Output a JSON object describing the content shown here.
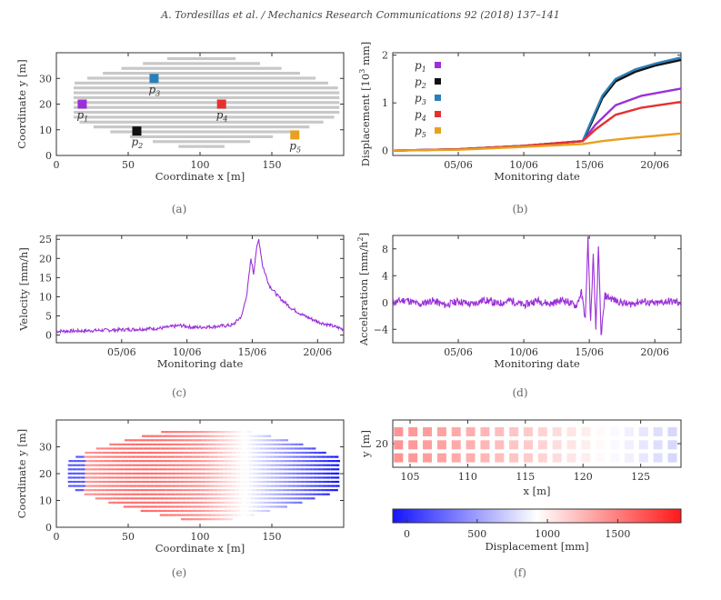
{
  "header": "A. Tordesillas et al. / Mechanics Research Communications 92 (2018) 137–141",
  "colors": {
    "p1": "#9b30d9",
    "p2": "#111111",
    "p3": "#2a7fba",
    "p4": "#e63030",
    "p5": "#e8a020",
    "purple": "#9b30d9",
    "grid": "#c8c8c8"
  },
  "chart_data": [
    {
      "id": "a",
      "type": "scatter",
      "caption": "(a)",
      "xlabel": "Coordinate x [m]",
      "ylabel": "Coordinate y [m]",
      "xlim": [
        0,
        200
      ],
      "ylim": [
        0,
        40
      ],
      "xticks": [
        "0",
        "50",
        "100",
        "150"
      ],
      "xtick_values": [
        0,
        50,
        100,
        150
      ],
      "yticks": [
        "0",
        "10",
        "20",
        "30"
      ],
      "ytick_values": [
        0,
        10,
        20,
        30
      ],
      "points": [
        {
          "name": "p1",
          "label": "p",
          "sub": "1",
          "x": 18,
          "y": 20,
          "color": "#9b30d9"
        },
        {
          "name": "p2",
          "label": "p",
          "sub": "2",
          "x": 56,
          "y": 9.5,
          "color": "#111111"
        },
        {
          "name": "p3",
          "label": "p",
          "sub": "3",
          "x": 68,
          "y": 30,
          "color": "#2a7fba"
        },
        {
          "name": "p4",
          "label": "p",
          "sub": "4",
          "x": 115,
          "y": 20,
          "color": "#e63030"
        },
        {
          "name": "p5",
          "label": "p",
          "sub": "5",
          "x": 166,
          "y": 8,
          "color": "#e8a020"
        }
      ]
    },
    {
      "id": "b",
      "type": "line",
      "caption": "(b)",
      "xlabel": "Monitoring date",
      "ylabel": "Displacement [10³ mm]",
      "ylabel_main": "Displacement [10",
      "ylabel_sup": "3",
      "ylabel_end": " mm]",
      "xlim": [
        0,
        22
      ],
      "ylim": [
        -0.1,
        2.05
      ],
      "xticks": [
        "05/06",
        "10/06",
        "15/06",
        "20/06"
      ],
      "xtick_values": [
        5,
        10,
        15,
        20
      ],
      "yticks": [
        "0",
        "1",
        "2"
      ],
      "ytick_values": [
        0,
        1,
        2
      ],
      "series": [
        {
          "name": "p1",
          "label": "p",
          "sub": "1",
          "color": "#9b30d9",
          "x": [
            0,
            5,
            10,
            14.5,
            15.5,
            17,
            19,
            22
          ],
          "y": [
            0,
            0.03,
            0.1,
            0.2,
            0.55,
            0.95,
            1.15,
            1.3
          ]
        },
        {
          "name": "p2",
          "label": "p",
          "sub": "2",
          "color": "#111111",
          "x": [
            0,
            5,
            10,
            14.5,
            15.2,
            16,
            17,
            18.5,
            20,
            22
          ],
          "y": [
            0,
            0.03,
            0.1,
            0.2,
            0.6,
            1.1,
            1.45,
            1.65,
            1.78,
            1.9
          ]
        },
        {
          "name": "p3",
          "label": "p",
          "sub": "3",
          "color": "#2a7fba",
          "x": [
            0,
            5,
            10,
            14.5,
            15.2,
            16,
            17,
            18.5,
            20,
            22
          ],
          "y": [
            0,
            0.03,
            0.1,
            0.2,
            0.65,
            1.15,
            1.5,
            1.7,
            1.82,
            1.95
          ]
        },
        {
          "name": "p4",
          "label": "p",
          "sub": "4",
          "color": "#e63030",
          "x": [
            0,
            5,
            10,
            14.5,
            15.5,
            17,
            19,
            22
          ],
          "y": [
            0,
            0.03,
            0.1,
            0.2,
            0.45,
            0.75,
            0.9,
            1.02
          ]
        },
        {
          "name": "p5",
          "label": "p",
          "sub": "5",
          "color": "#e8a020",
          "x": [
            0,
            5,
            10,
            14.5,
            16,
            18,
            20,
            22
          ],
          "y": [
            0,
            0.02,
            0.08,
            0.14,
            0.2,
            0.26,
            0.31,
            0.36
          ]
        }
      ]
    },
    {
      "id": "c",
      "type": "line",
      "caption": "(c)",
      "xlabel": "Monitoring date",
      "ylabel": "Velocity [mm/h]",
      "xlim": [
        0,
        22
      ],
      "ylim": [
        -2,
        26
      ],
      "xticks": [
        "05/06",
        "10/06",
        "15/06",
        "20/06"
      ],
      "xtick_values": [
        5,
        10,
        15,
        20
      ],
      "yticks": [
        "0",
        "5",
        "10",
        "15",
        "20",
        "25"
      ],
      "ytick_values": [
        0,
        5,
        10,
        15,
        20,
        25
      ],
      "series": [
        {
          "name": "velocity",
          "color": "#9b30d9",
          "x": [
            0,
            2,
            4,
            6,
            8,
            9.5,
            10.5,
            12,
            13.5,
            14.2,
            14.6,
            14.9,
            15.1,
            15.3,
            15.5,
            15.8,
            16.3,
            17,
            18,
            19,
            20,
            21,
            22
          ],
          "y": [
            1,
            1.1,
            1.3,
            1.5,
            1.8,
            2.5,
            2.0,
            2.2,
            2.6,
            5,
            11,
            20,
            16,
            22,
            25,
            18,
            13,
            10,
            7,
            5,
            3.5,
            2.5,
            1.5
          ]
        }
      ]
    },
    {
      "id": "d",
      "type": "line",
      "caption": "(d)",
      "xlabel": "Monitoring date",
      "ylabel": "Acceleration [mm/h²]",
      "ylabel_main": "Acceleration [mm/h",
      "ylabel_sup": "2",
      "ylabel_end": "]",
      "xlim": [
        0,
        22
      ],
      "ylim": [
        -6,
        10
      ],
      "xticks": [
        "05/06",
        "10/06",
        "15/06",
        "20/06"
      ],
      "xtick_values": [
        5,
        10,
        15,
        20
      ],
      "yticks": [
        "−4",
        "0",
        "4",
        "8"
      ],
      "ytick_values": [
        -4,
        0,
        4,
        8
      ],
      "series": [
        {
          "name": "acceleration",
          "color": "#9b30d9",
          "x": [
            0,
            1,
            2,
            3,
            4,
            5,
            6,
            7,
            8,
            9,
            10,
            11,
            12,
            13,
            14,
            14.4,
            14.7,
            14.9,
            15.1,
            15.3,
            15.5,
            15.7,
            15.9,
            16.2,
            17,
            18,
            19,
            20,
            21,
            22
          ],
          "y": [
            0,
            0.4,
            -0.3,
            0.3,
            -0.4,
            0.2,
            -0.3,
            0.4,
            -0.2,
            0.3,
            -0.4,
            0.3,
            -0.2,
            0.4,
            -0.5,
            1.5,
            -2.5,
            9.5,
            -3,
            7,
            -4,
            8,
            -5,
            1,
            0.3,
            -0.3,
            0.2,
            -0.2,
            0.2,
            0
          ]
        }
      ]
    },
    {
      "id": "e",
      "type": "heatmap",
      "caption": "(e)",
      "xlabel": "Coordinate x [m]",
      "ylabel": "Coordinate y [m]",
      "xlim": [
        0,
        200
      ],
      "ylim": [
        0,
        40
      ],
      "xticks": [
        "0",
        "50",
        "100",
        "150"
      ],
      "xtick_values": [
        0,
        50,
        100,
        150
      ],
      "yticks": [
        "0",
        "10",
        "20",
        "30"
      ],
      "ytick_values": [
        0,
        10,
        20,
        30
      ]
    },
    {
      "id": "f",
      "type": "heatmap",
      "caption": "(f)",
      "xlabel": "x [m]",
      "ylabel": "y [m]",
      "xlim": [
        103.5,
        128.5
      ],
      "ylim": [
        16,
        24
      ],
      "xticks": [
        "105",
        "110",
        "115",
        "120",
        "125"
      ],
      "xtick_values": [
        105,
        110,
        115,
        120,
        125
      ],
      "yticks": [
        "20"
      ],
      "ytick_values": [
        20
      ],
      "values": [
        1400,
        1380,
        1360,
        1340,
        1310,
        1280,
        1250,
        1220,
        1190,
        1160,
        1120,
        1080,
        1040,
        1000,
        950,
        900,
        860,
        820,
        780,
        750
      ],
      "colorbar": {
        "label": "Displacement [mm]",
        "min": -100,
        "max": 1950,
        "ticks": [
          "0",
          "500",
          "1000",
          "1500"
        ],
        "tick_values": [
          0,
          500,
          1000,
          1500
        ]
      }
    }
  ]
}
